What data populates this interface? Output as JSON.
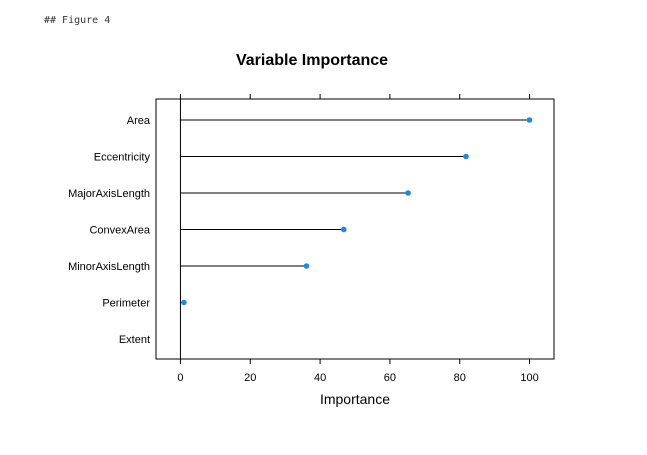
{
  "heading": "## Figure 4",
  "chart_data": {
    "type": "dotplot",
    "title": "Variable Importance",
    "xlabel": "Importance",
    "ylabel": "",
    "categories": [
      "Area",
      "Eccentricity",
      "MajorAxisLength",
      "ConvexArea",
      "MinorAxisLength",
      "Perimeter",
      "Extent"
    ],
    "values": [
      100,
      81.8,
      65.2,
      46.8,
      36.1,
      1.0,
      0
    ],
    "xlim": [
      -7,
      107
    ],
    "xticks": [
      0,
      20,
      40,
      60,
      80,
      100
    ],
    "xtick_labels": [
      "0",
      "20",
      "40",
      "60",
      "80",
      "100"
    ],
    "reference_line": 0,
    "grid": false,
    "legend": "none",
    "colors": {
      "point": "#1E88E5",
      "segment": "#000000",
      "frame": "#000000"
    }
  }
}
